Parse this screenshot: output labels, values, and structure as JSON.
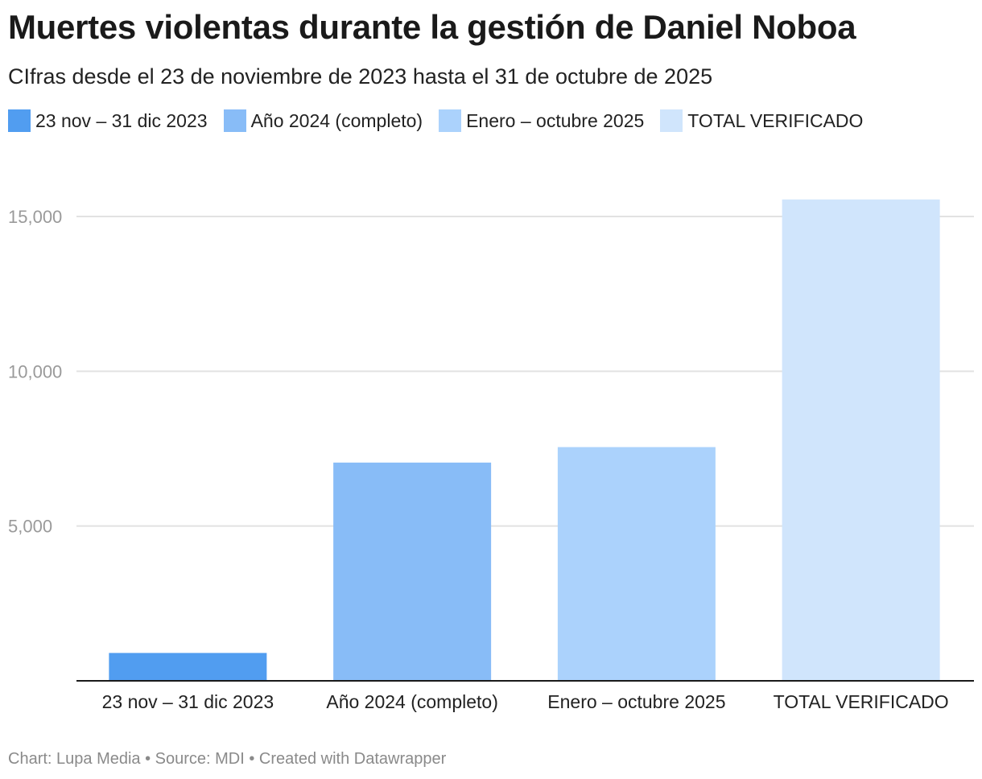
{
  "title": "Muertes violentas durante la gestión de Daniel Noboa",
  "subtitle": "CIfras desde el 23 de noviembre de 2023 hasta el 31 de octubre de 2025",
  "footer": {
    "chart_by": "Chart: Lupa Media",
    "source": "• Source: MDI",
    "created_with": "• Created with Datawrapper"
  },
  "chart_data": {
    "type": "bar",
    "categories": [
      "23 nov – 31 dic 2023",
      "Año 2024 (completo)",
      "Enero – octubre 2025",
      "TOTAL VERIFICADO"
    ],
    "values": [
      900,
      7050,
      7550,
      15550
    ],
    "colors": [
      "#519df0",
      "#88bcf7",
      "#abd2fc",
      "#d0e5fc"
    ],
    "legend": [
      "23 nov – 31 dic 2023",
      "Año 2024 (completo)",
      "Enero – octubre 2025",
      "TOTAL VERIFICADO"
    ],
    "legend_position": "top-left",
    "ylim": [
      0,
      16000
    ],
    "yticks": [
      5000,
      10000,
      15000
    ],
    "ytick_labels": [
      "5,000",
      "10,000",
      "15,000"
    ],
    "grid": true,
    "xlabel": "",
    "ylabel": ""
  }
}
